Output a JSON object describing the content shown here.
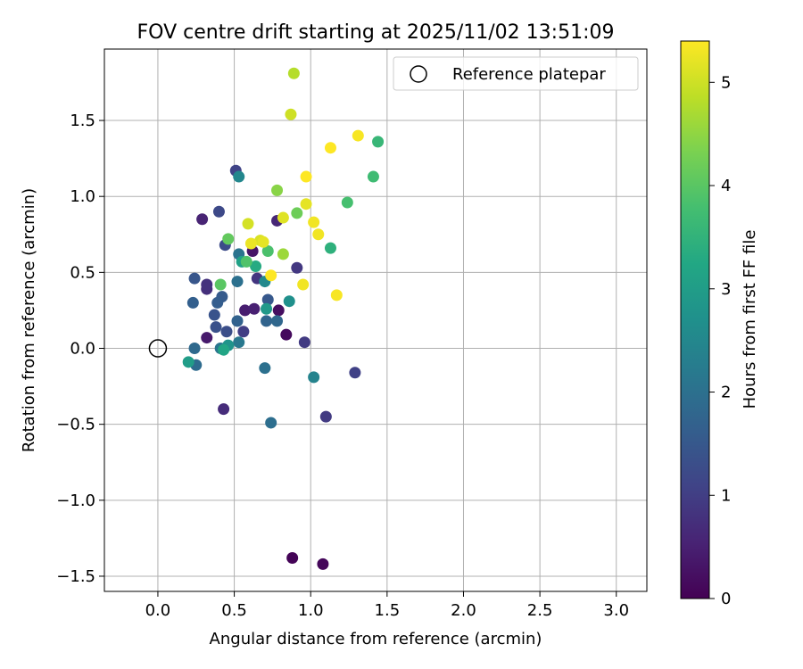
{
  "chart_data": {
    "type": "scatter",
    "title": "FOV centre drift starting at 2025/11/02 13:51:09",
    "xlabel": "Angular distance from reference (arcmin)",
    "ylabel": "Rotation from reference (arcmin)",
    "xlim": [
      -0.35,
      3.2
    ],
    "ylim": [
      -1.6,
      1.97
    ],
    "xticks": [
      0.0,
      0.5,
      1.0,
      1.5,
      2.0,
      2.5,
      3.0
    ],
    "xtick_labels": [
      "0.0",
      "0.5",
      "1.0",
      "1.5",
      "2.0",
      "2.5",
      "3.0"
    ],
    "yticks": [
      -1.5,
      -1.0,
      -0.5,
      0.0,
      0.5,
      1.0,
      1.5
    ],
    "ytick_labels": [
      "−1.5",
      "−1.0",
      "−0.5",
      "0.0",
      "0.5",
      "1.0",
      "1.5"
    ],
    "grid": true,
    "legend": {
      "location": "upper right",
      "entries": [
        "Reference platepar"
      ]
    },
    "reference_point": {
      "x": 0.0,
      "y": 0.0
    },
    "colorbar": {
      "label": "Hours from first FF file",
      "range": [
        0,
        5.4
      ],
      "ticks": [
        0,
        1,
        2,
        3,
        4,
        5
      ],
      "tick_labels": [
        "0",
        "1",
        "2",
        "3",
        "4",
        "5"
      ],
      "colormap": "viridis"
    },
    "points": [
      {
        "x": 0.88,
        "y": -1.38,
        "h": 0.05
      },
      {
        "x": 1.08,
        "y": -1.42,
        "h": 0.1
      },
      {
        "x": 0.84,
        "y": 0.09,
        "h": 0.15
      },
      {
        "x": 0.79,
        "y": 0.25,
        "h": 0.2
      },
      {
        "x": 0.62,
        "y": 0.64,
        "h": 0.3
      },
      {
        "x": 0.32,
        "y": 0.07,
        "h": 0.4
      },
      {
        "x": 0.57,
        "y": 0.25,
        "h": 0.45
      },
      {
        "x": 0.63,
        "y": 0.26,
        "h": 0.5
      },
      {
        "x": 0.29,
        "y": 0.85,
        "h": 0.55
      },
      {
        "x": 0.78,
        "y": 0.84,
        "h": 0.6
      },
      {
        "x": 0.43,
        "y": -0.4,
        "h": 0.7
      },
      {
        "x": 0.32,
        "y": 0.39,
        "h": 0.75
      },
      {
        "x": 0.32,
        "y": 0.42,
        "h": 0.8
      },
      {
        "x": 0.65,
        "y": 0.46,
        "h": 0.85
      },
      {
        "x": 0.91,
        "y": 0.53,
        "h": 0.9
      },
      {
        "x": 1.1,
        "y": -0.45,
        "h": 0.95
      },
      {
        "x": 0.96,
        "y": 0.04,
        "h": 0.95
      },
      {
        "x": 0.56,
        "y": 0.11,
        "h": 1.0
      },
      {
        "x": 1.29,
        "y": -0.16,
        "h": 1.05
      },
      {
        "x": 0.51,
        "y": 1.17,
        "h": 1.1
      },
      {
        "x": 0.4,
        "y": 0.9,
        "h": 1.2
      },
      {
        "x": 0.44,
        "y": 0.68,
        "h": 1.25
      },
      {
        "x": 0.45,
        "y": 0.11,
        "h": 1.3
      },
      {
        "x": 0.38,
        "y": 0.14,
        "h": 1.35
      },
      {
        "x": 0.37,
        "y": 0.22,
        "h": 1.4
      },
      {
        "x": 0.24,
        "y": 0.46,
        "h": 1.45
      },
      {
        "x": 0.72,
        "y": 0.32,
        "h": 1.5
      },
      {
        "x": 0.42,
        "y": 0.34,
        "h": 1.55
      },
      {
        "x": 0.39,
        "y": 0.3,
        "h": 1.6
      },
      {
        "x": 0.23,
        "y": 0.3,
        "h": 1.65
      },
      {
        "x": 0.52,
        "y": 0.18,
        "h": 1.7
      },
      {
        "x": 0.71,
        "y": 0.18,
        "h": 1.75
      },
      {
        "x": 0.78,
        "y": 0.18,
        "h": 1.8
      },
      {
        "x": 0.24,
        "y": 0.0,
        "h": 1.85
      },
      {
        "x": 0.25,
        "y": -0.11,
        "h": 1.9
      },
      {
        "x": 0.74,
        "y": -0.49,
        "h": 1.95
      },
      {
        "x": 0.7,
        "y": -0.13,
        "h": 2.0
      },
      {
        "x": 0.52,
        "y": 0.44,
        "h": 2.0
      },
      {
        "x": 0.53,
        "y": 0.62,
        "h": 2.05
      },
      {
        "x": 0.41,
        "y": 0.0,
        "h": 2.1
      },
      {
        "x": 0.53,
        "y": 0.04,
        "h": 2.15
      },
      {
        "x": 1.02,
        "y": -0.19,
        "h": 2.4
      },
      {
        "x": 0.53,
        "y": 1.13,
        "h": 2.5
      },
      {
        "x": 0.7,
        "y": 0.44,
        "h": 2.55
      },
      {
        "x": 0.86,
        "y": 0.31,
        "h": 2.7
      },
      {
        "x": 0.46,
        "y": 0.02,
        "h": 2.8
      },
      {
        "x": 0.71,
        "y": 0.26,
        "h": 2.9
      },
      {
        "x": 0.2,
        "y": -0.09,
        "h": 3.0
      },
      {
        "x": 0.55,
        "y": 0.57,
        "h": 3.1
      },
      {
        "x": 0.43,
        "y": -0.01,
        "h": 3.2
      },
      {
        "x": 0.64,
        "y": 0.54,
        "h": 3.3
      },
      {
        "x": 1.13,
        "y": 0.66,
        "h": 3.45
      },
      {
        "x": 1.44,
        "y": 1.36,
        "h": 3.6
      },
      {
        "x": 1.41,
        "y": 1.13,
        "h": 3.7
      },
      {
        "x": 1.24,
        "y": 0.96,
        "h": 3.8
      },
      {
        "x": 0.72,
        "y": 0.64,
        "h": 3.85
      },
      {
        "x": 0.58,
        "y": 0.57,
        "h": 3.9
      },
      {
        "x": 0.41,
        "y": 0.42,
        "h": 4.0
      },
      {
        "x": 0.46,
        "y": 0.72,
        "h": 4.1
      },
      {
        "x": 0.91,
        "y": 0.89,
        "h": 4.2
      },
      {
        "x": 0.78,
        "y": 1.04,
        "h": 4.45
      },
      {
        "x": 0.82,
        "y": 0.62,
        "h": 4.6
      },
      {
        "x": 0.89,
        "y": 1.81,
        "h": 4.8
      },
      {
        "x": 0.87,
        "y": 1.54,
        "h": 5.0
      },
      {
        "x": 0.59,
        "y": 0.82,
        "h": 5.05
      },
      {
        "x": 0.67,
        "y": 0.71,
        "h": 5.1
      },
      {
        "x": 0.82,
        "y": 0.86,
        "h": 5.15
      },
      {
        "x": 0.97,
        "y": 0.95,
        "h": 5.2
      },
      {
        "x": 0.61,
        "y": 0.69,
        "h": 5.25
      },
      {
        "x": 1.02,
        "y": 0.83,
        "h": 5.3
      },
      {
        "x": 1.05,
        "y": 0.75,
        "h": 5.3
      },
      {
        "x": 1.31,
        "y": 1.4,
        "h": 5.35
      },
      {
        "x": 0.97,
        "y": 1.13,
        "h": 5.4
      },
      {
        "x": 1.13,
        "y": 1.32,
        "h": 5.4
      },
      {
        "x": 0.95,
        "y": 0.42,
        "h": 5.3
      },
      {
        "x": 1.17,
        "y": 0.35,
        "h": 5.35
      },
      {
        "x": 0.74,
        "y": 0.48,
        "h": 5.4
      },
      {
        "x": 0.69,
        "y": 0.7,
        "h": 5.2
      }
    ]
  }
}
